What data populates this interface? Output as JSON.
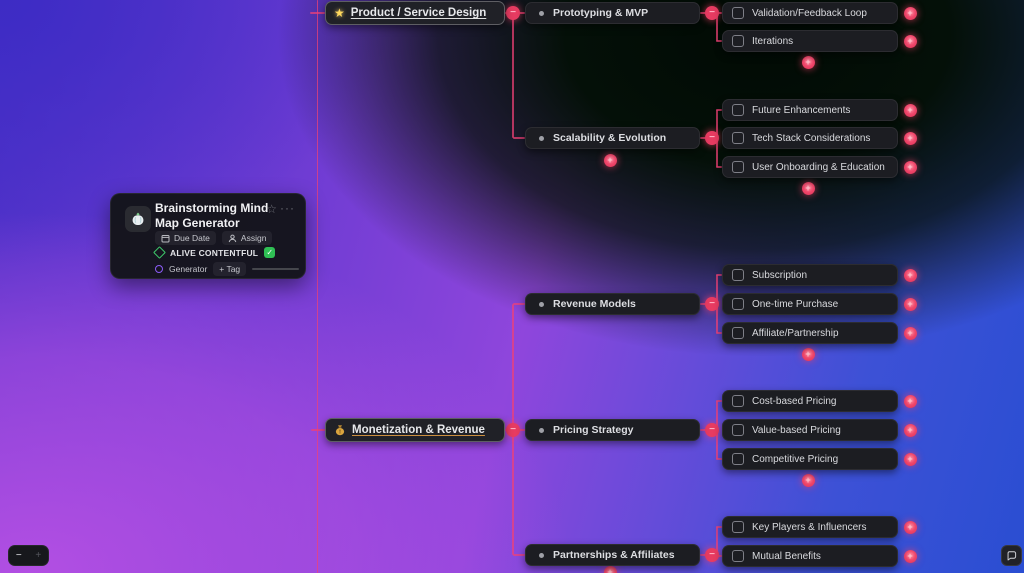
{
  "card": {
    "title": "Brainstorming Mind Map Generator",
    "due_date_label": "Due Date",
    "assign_label": "Assign",
    "status_label": "ALIVE CONTENTFUL",
    "status_check": "✓",
    "tag_label": "Generator",
    "add_tag_label": "+ Tag",
    "star_icon": "☆",
    "menu_icon": "···"
  },
  "mindmap": {
    "branches": [
      {
        "label": "Product / Service Design",
        "icon": "★",
        "children": [
          {
            "label": "Prototyping & MVP",
            "children": [
              {
                "label": "Validation/Feedback Loop"
              },
              {
                "label": "Iterations"
              }
            ]
          },
          {
            "label": "Scalability & Evolution",
            "children": [
              {
                "label": "Future Enhancements"
              },
              {
                "label": "Tech Stack Considerations"
              },
              {
                "label": "User Onboarding & Education"
              }
            ]
          }
        ]
      },
      {
        "label": "Monetization & Revenue",
        "children": [
          {
            "label": "Revenue Models",
            "children": [
              {
                "label": "Subscription"
              },
              {
                "label": "One-time Purchase"
              },
              {
                "label": "Affiliate/Partnership"
              }
            ]
          },
          {
            "label": "Pricing Strategy",
            "children": [
              {
                "label": "Cost-based Pricing"
              },
              {
                "label": "Value-based Pricing"
              },
              {
                "label": "Competitive Pricing"
              }
            ]
          },
          {
            "label": "Partnerships & Affiliates",
            "children": [
              {
                "label": "Key Players & Influencers"
              },
              {
                "label": "Mutual Benefits"
              }
            ]
          }
        ]
      }
    ]
  },
  "controls": {
    "zoom_out": "−",
    "zoom_in": "+",
    "add_icon": "+",
    "collapse_icon": "−"
  },
  "colors": {
    "accent_pink": "#e73b61",
    "connector": "#f04176",
    "node_bg": "#1c1d22",
    "status_green": "#2fbf54",
    "tag_purple": "#8b5cf6",
    "star_yellow": "#ffd95e",
    "moneybag_gold": "#d9a53e"
  }
}
